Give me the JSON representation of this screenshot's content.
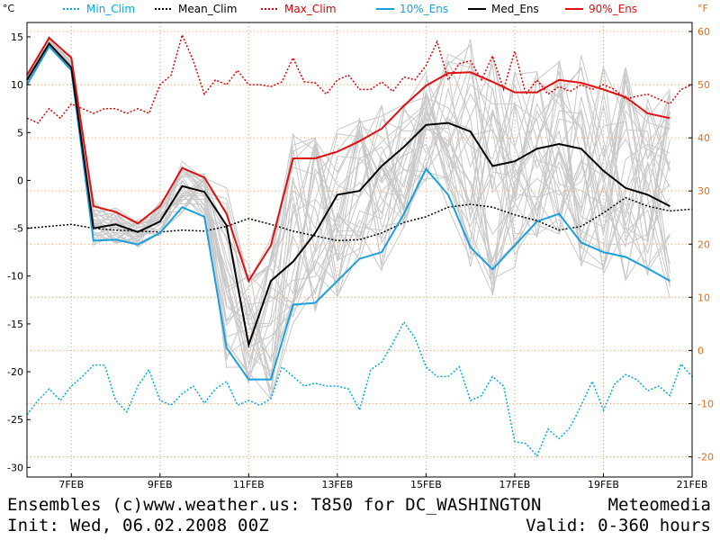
{
  "chart_data": {
    "type": "line",
    "left_unit": "°C",
    "right_unit": "°F",
    "yticks_c": [
      15,
      10,
      5,
      0,
      -5,
      -10,
      -15,
      -20,
      -25,
      -30
    ],
    "yticks_f": [
      60,
      50,
      40,
      30,
      20,
      10,
      0,
      -10,
      -20
    ],
    "ylim_c": [
      -31,
      16.5
    ],
    "xlim_day": [
      6,
      21
    ],
    "xticks": [
      {
        "day": 7,
        "label": "7FEB"
      },
      {
        "day": 9,
        "label": "9FEB"
      },
      {
        "day": 11,
        "label": "11FEB"
      },
      {
        "day": 13,
        "label": "13FEB"
      },
      {
        "day": 15,
        "label": "15FEB"
      },
      {
        "day": 17,
        "label": "17FEB"
      },
      {
        "day": 19,
        "label": "19FEB"
      },
      {
        "day": 21,
        "label": "21FEB"
      }
    ],
    "legend": [
      "Min_Clim",
      "Mean_Clim",
      "Max_Clim",
      "10%_Ens",
      "Med_Ens",
      "90%_Ens"
    ],
    "colors": {
      "clim_min": "#00a8e8",
      "clim_mean": "#000000",
      "clim_max": "#e00000",
      "ens10": "#1aa0dd",
      "ens_med": "#000000",
      "ens90": "#e01010",
      "members": "#c8c8c8",
      "grid": "#e8a070",
      "frame": "#000000"
    },
    "series": [
      {
        "name": "Min_Clim",
        "style": "dotted",
        "x": [
          6,
          6.25,
          6.5,
          6.75,
          7,
          7.25,
          7.5,
          7.75,
          8,
          8.25,
          8.5,
          8.75,
          9,
          9.25,
          9.5,
          9.75,
          10,
          10.25,
          10.5,
          10.75,
          11,
          11.25,
          11.5,
          11.75,
          12,
          12.25,
          12.5,
          12.75,
          13,
          13.25,
          13.5,
          13.75,
          14,
          14.25,
          14.5,
          14.75,
          15,
          15.25,
          15.5,
          15.75,
          16,
          16.25,
          16.5,
          16.75,
          17,
          17.25,
          17.5,
          17.75,
          18,
          18.25,
          18.5,
          18.75,
          19,
          19.25,
          19.5,
          19.75,
          20,
          20.25,
          20.5,
          20.75,
          21
        ],
        "y": [
          -24.5,
          -23,
          -21.8,
          -23,
          -21.5,
          -20.5,
          -19.3,
          -19.3,
          -23,
          -24.2,
          -21.5,
          -19.8,
          -23,
          -23.5,
          -22.3,
          -21.5,
          -23.3,
          -21.8,
          -21,
          -23.5,
          -23,
          -23.5,
          -22.8,
          -19.5,
          -20.5,
          -21.5,
          -21.2,
          -21.5,
          -21.5,
          -21.8,
          -24,
          -19.8,
          -19,
          -17,
          -14.8,
          -16.5,
          -19.5,
          -20.5,
          -20.5,
          -19.5,
          -23,
          -22.5,
          -20.5,
          -21.5,
          -27.3,
          -27.5,
          -28.8,
          -26,
          -27,
          -25.8,
          -23.5,
          -21,
          -24,
          -21.3,
          -20.3,
          -20.8,
          -22,
          -21.5,
          -22.5,
          -19.2,
          -20.5
        ]
      },
      {
        "name": "Mean_Clim",
        "style": "dotted",
        "x": [
          6,
          6.5,
          7,
          7.5,
          8,
          8.5,
          9,
          9.5,
          10,
          10.5,
          11,
          11.5,
          12,
          12.5,
          13,
          13.5,
          14,
          14.5,
          15,
          15.5,
          16,
          16.5,
          17,
          17.5,
          18,
          18.5,
          19,
          19.5,
          20,
          20.5,
          21
        ],
        "y": [
          -5,
          -4.8,
          -4.6,
          -5,
          -5.2,
          -5.3,
          -5.4,
          -5.2,
          -5.3,
          -4.8,
          -4,
          -4.6,
          -5.3,
          -5.8,
          -6.3,
          -6.2,
          -5.5,
          -4.4,
          -3.8,
          -2.8,
          -2.5,
          -2.8,
          -3.6,
          -4.2,
          -5.2,
          -4.8,
          -3.4,
          -1.8,
          -2.7,
          -3.2,
          -3
        ]
      },
      {
        "name": "Max_Clim",
        "style": "dotted",
        "x": [
          6,
          6.25,
          6.5,
          6.75,
          7,
          7.25,
          7.5,
          7.75,
          8,
          8.25,
          8.5,
          8.75,
          9,
          9.25,
          9.5,
          9.75,
          10,
          10.25,
          10.5,
          10.75,
          11,
          11.25,
          11.5,
          11.75,
          12,
          12.25,
          12.5,
          12.75,
          13,
          13.25,
          13.5,
          13.75,
          14,
          14.25,
          14.5,
          14.75,
          15,
          15.25,
          15.5,
          15.75,
          16,
          16.25,
          16.5,
          16.75,
          17,
          17.25,
          17.5,
          17.75,
          18,
          18.25,
          18.5,
          18.75,
          19,
          19.25,
          19.5,
          19.75,
          20,
          20.25,
          20.5,
          20.75,
          21
        ],
        "y": [
          6.5,
          6,
          7.5,
          6.5,
          8,
          7.5,
          7,
          7.5,
          7.5,
          7,
          7.5,
          7,
          10,
          11,
          15.2,
          12.5,
          9,
          10.5,
          10,
          11.5,
          10,
          10,
          9.8,
          10.3,
          12.8,
          10.3,
          10.2,
          9,
          10.5,
          11,
          9.5,
          9.5,
          10.3,
          9.3,
          10.8,
          10.5,
          12,
          14.5,
          10.5,
          12.2,
          12.5,
          10.5,
          13,
          9.5,
          13.5,
          9,
          10.5,
          9,
          9.8,
          9.3,
          10,
          9.5,
          10,
          9.5,
          8.5,
          8.8,
          9,
          8.5,
          8,
          9.5,
          10
        ]
      },
      {
        "name": "10%_Ens",
        "style": "solid",
        "x": [
          6,
          6.5,
          7,
          7.5,
          8,
          8.5,
          9,
          9.5,
          10,
          10.5,
          11,
          11.5,
          12,
          12.5,
          13,
          13.5,
          14,
          14.5,
          15,
          15.5,
          16,
          16.5,
          17,
          17.5,
          18,
          18.5,
          19,
          19.5,
          20,
          20.5
        ],
        "y": [
          10,
          14,
          11.5,
          -6.3,
          -6.2,
          -6.7,
          -5.5,
          -2.8,
          -3.8,
          -17.5,
          -20.8,
          -20.8,
          -13,
          -12.8,
          -10.5,
          -8.2,
          -7.5,
          -3.5,
          1.2,
          -1.5,
          -7,
          -9.3,
          -6.8,
          -4.3,
          -3.5,
          -6.5,
          -7.5,
          -8,
          -9.2,
          -10.5
        ]
      },
      {
        "name": "Med_Ens",
        "style": "solid",
        "x": [
          6,
          6.5,
          7,
          7.5,
          8,
          8.5,
          9,
          9.5,
          10,
          10.5,
          11,
          11.5,
          12,
          12.5,
          13,
          13.5,
          14,
          14.5,
          15,
          15.5,
          16,
          16.5,
          17,
          17.5,
          18,
          18.5,
          19,
          19.5,
          20,
          20.5
        ],
        "y": [
          10.5,
          14.3,
          11.8,
          -5,
          -4.6,
          -5.4,
          -4.3,
          -0.6,
          -1.2,
          -4.7,
          -17.2,
          -10.5,
          -8.5,
          -5.5,
          -1.5,
          -1.1,
          1.5,
          3.5,
          5.8,
          6,
          5.1,
          1.5,
          2,
          3.3,
          3.8,
          3.3,
          1,
          -0.8,
          -1.5,
          -2.7
        ]
      },
      {
        "name": "90%_Ens",
        "style": "solid",
        "x": [
          6,
          6.5,
          7,
          7.5,
          8,
          8.5,
          9,
          9.5,
          10,
          10.5,
          11,
          11.5,
          12,
          12.5,
          13,
          13.5,
          14,
          14.5,
          15,
          15.5,
          16,
          16.5,
          17,
          17.5,
          18,
          18.5,
          19,
          19.5,
          20,
          20.5
        ],
        "y": [
          11,
          14.9,
          12.8,
          -2.7,
          -3.3,
          -4.5,
          -2.7,
          1.3,
          0.3,
          -3.5,
          -10.5,
          -6.8,
          2.3,
          2.3,
          3,
          4.1,
          5.4,
          7.8,
          9.9,
          11.2,
          11.3,
          10.3,
          9.2,
          9.2,
          10.5,
          10.2,
          9.5,
          8.7,
          7,
          6.5
        ]
      }
    ]
  },
  "footer": {
    "line1": "Ensembles (c)www.weather.us: T850 for DC_WASHINGTON",
    "line1_right": "Meteomedia",
    "line2": "Init: Wed, 06.02.2008 00Z",
    "line2_right": "Valid: 0-360 hours"
  }
}
